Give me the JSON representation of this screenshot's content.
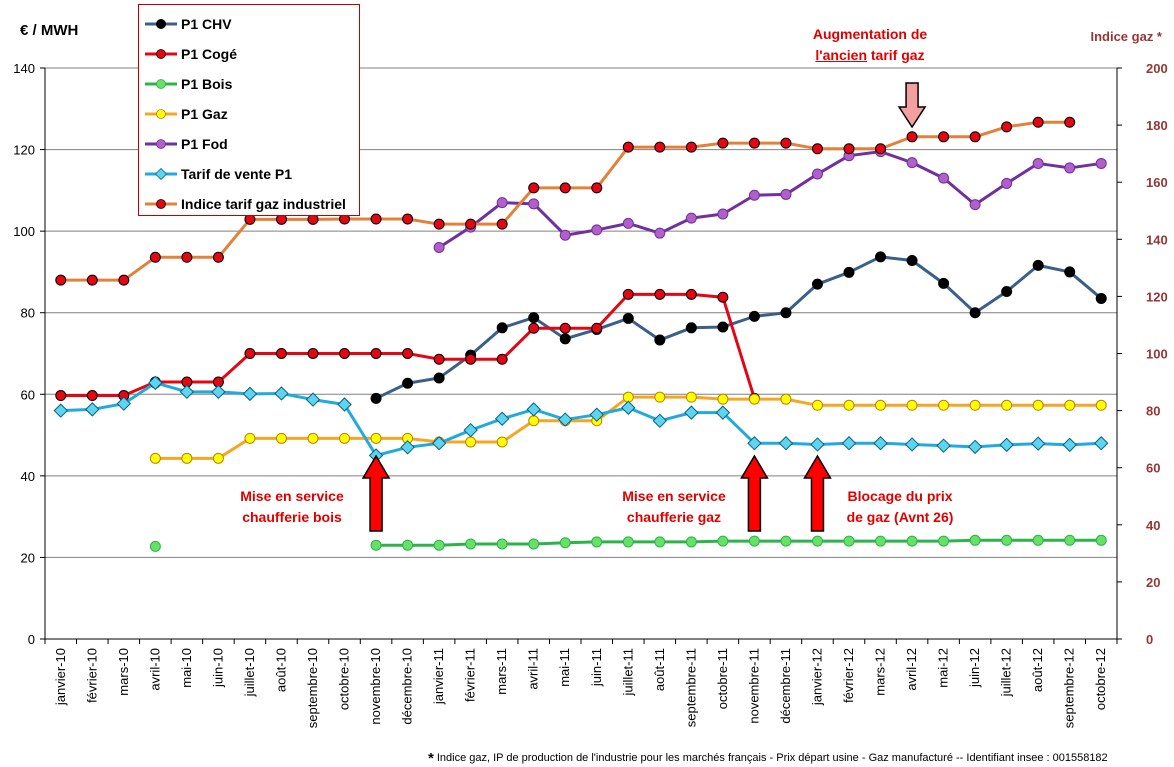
{
  "chart_data": {
    "type": "line",
    "y_label_left": "€ / MWH",
    "y_label_right": "Indice gaz *",
    "ylim_left": [
      0,
      140
    ],
    "yticks_left": [
      0,
      20,
      40,
      60,
      80,
      100,
      120,
      140
    ],
    "ylim_right": [
      0,
      200
    ],
    "yticks_right": [
      0,
      20,
      40,
      60,
      80,
      100,
      120,
      140,
      160,
      180,
      200
    ],
    "grid": true,
    "legend_position": "top-left",
    "categories": [
      "janvier-10",
      "février-10",
      "mars-10",
      "avril-10",
      "mai-10",
      "juin-10",
      "juillet-10",
      "août-10",
      "septembre-10",
      "octobre-10",
      "novembre-10",
      "décembre-10",
      "janvier-11",
      "février-11",
      "mars-11",
      "avril-11",
      "mai-11",
      "juin-11",
      "juillet-11",
      "août-11",
      "septembre-11",
      "octobre-11",
      "novembre-11",
      "décembre-11",
      "janvier-12",
      "février-12",
      "mars-12",
      "avril-12",
      "mai-12",
      "juin-12",
      "juillet-12",
      "août-12",
      "septembre-12",
      "octobre-12"
    ],
    "series": [
      {
        "name": "P1 CHV",
        "color": "#3a5f8a",
        "marker": "#000000",
        "shape": "circle",
        "axis": "left",
        "values": [
          null,
          null,
          null,
          62.8,
          null,
          null,
          null,
          null,
          null,
          null,
          59,
          62.7,
          64,
          69.6,
          76.3,
          78.8,
          73.6,
          75.9,
          78.6,
          73.3,
          76.3,
          76.5,
          79.1,
          80,
          87,
          89.9,
          93.7,
          92.8,
          87.2,
          80,
          85.2,
          91.6,
          90,
          83.5
        ]
      },
      {
        "name": "P1 Cogé",
        "color": "#e30613",
        "marker": "#e30613",
        "shape": "circle",
        "axis": "left",
        "values": [
          59.7,
          59.7,
          59.7,
          63,
          63,
          63,
          70,
          70,
          70,
          70,
          70,
          70,
          68.6,
          68.6,
          68.6,
          76.2,
          76.2,
          76.2,
          84.5,
          84.5,
          84.5,
          83.8,
          59,
          null,
          null,
          null,
          null,
          null,
          null,
          null,
          null,
          null,
          null,
          null
        ]
      },
      {
        "name": "P1 Bois",
        "color": "#2db34a",
        "marker": "#66e066",
        "shape": "circle",
        "axis": "left",
        "values": [
          null,
          null,
          null,
          22.7,
          null,
          null,
          null,
          null,
          null,
          null,
          23,
          23,
          23,
          23.3,
          23.3,
          23.3,
          23.6,
          23.8,
          23.8,
          23.8,
          23.8,
          24,
          24,
          24,
          24,
          24,
          24,
          24,
          24,
          24.2,
          24.2,
          24.2,
          24.2,
          24.2
        ]
      },
      {
        "name": "P1 Gaz",
        "color": "#f5a623",
        "marker": "#ffff00",
        "shape": "circle",
        "axis": "left",
        "values": [
          null,
          null,
          null,
          44.3,
          44.3,
          44.3,
          49.2,
          49.2,
          49.2,
          49.2,
          49.2,
          49.2,
          48.3,
          48.3,
          48.3,
          53.5,
          53.5,
          53.5,
          59.3,
          59.3,
          59.3,
          58.8,
          58.8,
          58.8,
          57.3,
          57.3,
          57.3,
          57.3,
          57.3,
          57.3,
          57.3,
          57.3,
          57.3,
          57.3
        ]
      },
      {
        "name": "P1 Fod",
        "color": "#7030a0",
        "marker": "#b060c8",
        "shape": "circle",
        "axis": "left",
        "values": [
          null,
          null,
          null,
          null,
          null,
          null,
          null,
          null,
          null,
          null,
          null,
          null,
          96,
          101,
          107,
          106.7,
          99,
          100.3,
          101.9,
          99.5,
          103.2,
          104.2,
          108.8,
          109,
          114,
          118.5,
          119.5,
          116.8,
          113,
          106.5,
          111.7,
          116.6,
          115.5,
          116.6
        ]
      },
      {
        "name": "Tarif de vente P1",
        "color": "#22aadd",
        "marker": "#5dd5f0",
        "shape": "diamond",
        "axis": "left",
        "values": [
          56,
          56.3,
          57.7,
          62.8,
          60.6,
          60.6,
          60.1,
          60.2,
          58.7,
          57.5,
          45,
          47,
          48,
          51.2,
          54,
          56.3,
          53.8,
          55,
          56.7,
          53.5,
          55.5,
          55.5,
          48,
          48,
          47.7,
          48,
          48,
          47.7,
          47.4,
          47.1,
          47.6,
          47.9,
          47.6,
          48
        ]
      },
      {
        "name": "Indice tarif gaz industriel",
        "color": "#e3813a",
        "marker": "#e30613",
        "shape": "circle",
        "axis": "right",
        "values": [
          125.7,
          125.7,
          125.7,
          133.7,
          133.7,
          133.7,
          147,
          147,
          147,
          147.1,
          147.1,
          147.1,
          145.3,
          145.3,
          145.3,
          158,
          158,
          158,
          172.3,
          172.3,
          172.3,
          173.7,
          173.7,
          173.7,
          171.7,
          171.7,
          171.7,
          175.9,
          175.9,
          175.9,
          179.4,
          181,
          181,
          null
        ]
      }
    ],
    "annotations": [
      {
        "text_lines": [
          "Mise en service",
          "chaufferie bois"
        ],
        "category": "novembre-10"
      },
      {
        "text_lines": [
          "Mise en service",
          "chaufferie gaz"
        ],
        "category": "novembre-11"
      },
      {
        "text_lines": [
          "Blocage du prix",
          "de gaz (Avnt 26)"
        ],
        "category": "janvier-12"
      },
      {
        "text_line1": "Augmentation de",
        "text_line2_pre": "",
        "text_line2_u": "l'ancien",
        "text_line2_post": " tarif gaz",
        "category": "avril-12"
      }
    ]
  },
  "footnote": {
    "star": "*",
    "text": "Indice gaz, IP de production de l'industrie pour les marchés français - Prix départ usine - Gaz manufacturé -- Identifiant insee : 001558182"
  },
  "colors": {
    "arrow_red": "#ff0000",
    "arrow_pink": "#f4a0a0",
    "annotation_text": "#e00000",
    "right_axis_text": "#953735",
    "grid": "#808080"
  }
}
